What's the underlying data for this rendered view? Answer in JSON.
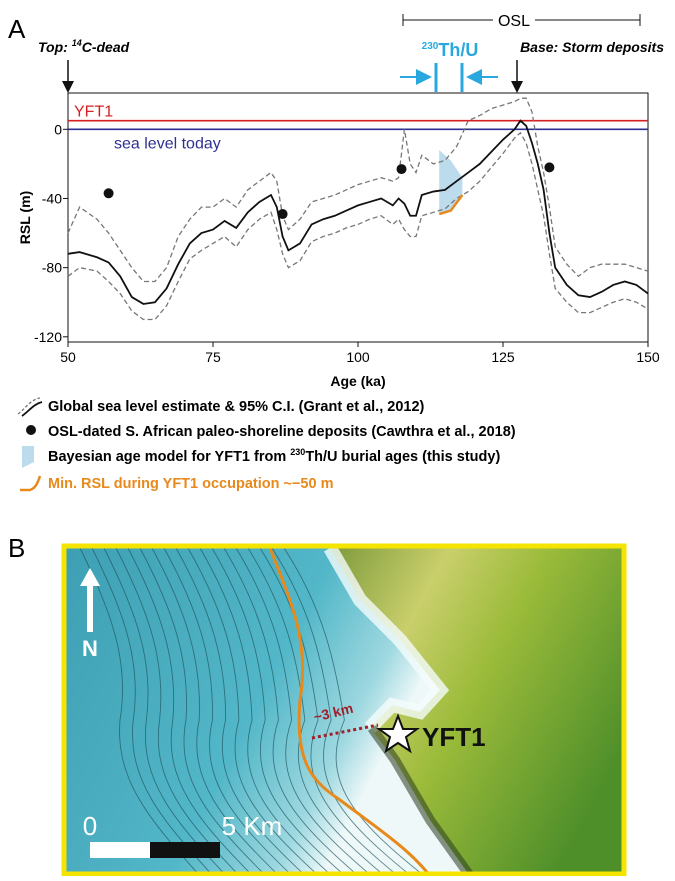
{
  "panel_labels": [
    "A",
    "B"
  ],
  "chart_data": {
    "type": "line",
    "xlabel": "Age (ka)",
    "ylabel": "RSL (m)",
    "xlim": [
      50,
      150
    ],
    "xticks": [
      50,
      75,
      100,
      125,
      150
    ],
    "ylim": [
      -123,
      21
    ],
    "yticks": [
      0,
      -40,
      -80,
      -120
    ],
    "x": [
      50,
      52,
      55,
      57,
      59,
      61,
      63,
      65,
      67,
      69,
      71,
      73,
      75,
      77,
      79,
      81,
      83,
      85,
      86,
      87,
      88,
      90,
      92,
      94,
      96,
      98,
      100,
      102,
      104,
      106,
      107,
      108,
      109,
      110,
      111,
      113,
      115,
      117,
      119,
      121,
      123,
      125,
      127,
      128,
      129,
      130,
      131,
      132,
      133,
      134,
      136,
      138,
      140,
      142,
      144,
      146,
      148,
      150
    ],
    "series": [
      {
        "name": "Global sea level estimate & 95% C.I. (Grant et al., 2012)",
        "color": "#111111",
        "values": [
          -72,
          -71,
          -74,
          -77,
          -85,
          -97,
          -101,
          -100,
          -92,
          -78,
          -66,
          -60,
          -58,
          -53,
          -57,
          -48,
          -42,
          -38,
          -45,
          -62,
          -70,
          -66,
          -55,
          -52,
          -50,
          -47,
          -44,
          -42,
          -40,
          -44,
          -40,
          -43,
          -50,
          -50,
          -38,
          -36,
          -35,
          -30,
          -25,
          -20,
          -13,
          -6,
          0,
          5,
          2,
          -8,
          -20,
          -35,
          -60,
          -80,
          -90,
          -96,
          -97,
          -94,
          -90,
          -88,
          -90,
          -95
        ]
      }
    ],
    "ci": {
      "color": "#777777",
      "upper": [
        -60,
        -45,
        -52,
        -60,
        -70,
        -80,
        -88,
        -88,
        -80,
        -62,
        -52,
        -45,
        -45,
        -40,
        -45,
        -35,
        -30,
        -25,
        -30,
        -50,
        -58,
        -52,
        -42,
        -40,
        -38,
        -35,
        -32,
        -30,
        -28,
        -30,
        -28,
        0,
        -20,
        -25,
        -15,
        -20,
        -18,
        -10,
        5,
        8,
        12,
        14,
        16,
        18,
        18,
        10,
        -10,
        -25,
        -45,
        -68,
        -78,
        -85,
        -80,
        -78,
        -78,
        -78,
        -80,
        -82
      ],
      "lower": [
        -85,
        -80,
        -82,
        -88,
        -95,
        -105,
        -110,
        -110,
        -102,
        -88,
        -75,
        -70,
        -66,
        -62,
        -68,
        -58,
        -52,
        -48,
        -58,
        -72,
        -80,
        -76,
        -65,
        -62,
        -60,
        -57,
        -55,
        -52,
        -50,
        -55,
        -52,
        -58,
        -62,
        -62,
        -50,
        -48,
        -46,
        -40,
        -36,
        -30,
        -22,
        -14,
        -5,
        -2,
        -8,
        -20,
        -35,
        -50,
        -72,
        -92,
        -100,
        -106,
        -106,
        -103,
        -100,
        -98,
        -100,
        -104
      ]
    },
    "points": {
      "name": "OSL-dated S. African paleo-shoreline deposits (Cawthra et al., 2018)",
      "color": "#111111",
      "x": [
        57,
        87,
        107.5,
        133
      ],
      "values": [
        -37,
        -49,
        -23,
        -22
      ]
    },
    "band": {
      "name_prefix": "Bayesian age model for YFT1 from ",
      "name_sup": "230",
      "name_suffix": "Th/U burial ages (this study)",
      "color": "#bcdcee",
      "x": [
        114,
        116,
        118
      ],
      "upper": [
        -12,
        -18,
        -28
      ],
      "lower": [
        -49,
        -47,
        -38
      ]
    },
    "min_rsl": {
      "name": "Min. RSL during YFT1 occupation ~−50 m",
      "color": "#e8891c",
      "x": [
        114,
        116,
        118
      ],
      "values": [
        -49,
        -47,
        -38
      ]
    },
    "reference_lines": [
      {
        "label": "YFT1",
        "value": 5,
        "color": "#d42020"
      },
      {
        "label": "sea level today",
        "value": 0,
        "color": "#2e3192"
      }
    ],
    "annotations": {
      "top_prefix": "Top: ",
      "top_sup": "14",
      "top_suffix": "C-dead",
      "base": "Base: Storm deposits",
      "osl": "OSL",
      "thu_sup": "230",
      "thu": "Th/U"
    }
  },
  "map": {
    "north": "N",
    "site": "YFT1",
    "distance": "~3 km",
    "scale_start": "0",
    "scale_end": "5 Km"
  }
}
